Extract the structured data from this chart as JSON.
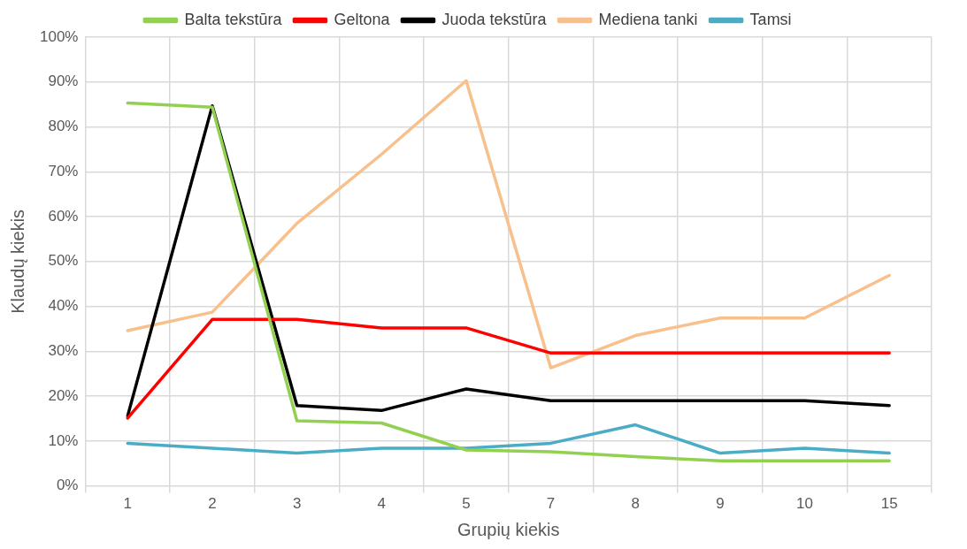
{
  "chart_data": {
    "type": "line",
    "xlabel": "Grupių kiekis",
    "ylabel": "Klaudų kiekis",
    "categories": [
      "1",
      "2",
      "3",
      "4",
      "5",
      "7",
      "8",
      "9",
      "10",
      "15"
    ],
    "series": [
      {
        "name": "Balta tekstūra",
        "color": "#92d050",
        "values": [
          85.3,
          84.4,
          14.5,
          14.0,
          8.0,
          7.6,
          6.5,
          5.6,
          5.6,
          5.6
        ]
      },
      {
        "name": "Geltona",
        "color": "#ff0000",
        "values": [
          15.1,
          37.1,
          37.1,
          35.2,
          35.2,
          29.6,
          29.6,
          29.6,
          29.6,
          29.6
        ]
      },
      {
        "name": "Juoda tekstūra",
        "color": "#000000",
        "values": [
          15.6,
          84.7,
          17.9,
          16.8,
          21.6,
          19.0,
          19.0,
          19.0,
          19.0,
          17.9
        ]
      },
      {
        "name": "Mediena tanki",
        "color": "#f8c08c",
        "values": [
          34.6,
          38.7,
          58.5,
          73.9,
          90.3,
          26.3,
          33.5,
          37.4,
          37.4,
          46.9
        ]
      },
      {
        "name": "Tamsi",
        "color": "#4bacc6",
        "values": [
          9.5,
          8.4,
          7.3,
          8.4,
          8.4,
          9.5,
          13.6,
          7.3,
          8.4,
          7.3
        ]
      }
    ],
    "ylim": [
      0,
      100
    ],
    "yticks": [
      {
        "value": 0,
        "label": "0%"
      },
      {
        "value": 10,
        "label": "10%"
      },
      {
        "value": 20,
        "label": "20%"
      },
      {
        "value": 30,
        "label": "30%"
      },
      {
        "value": 40,
        "label": "40%"
      },
      {
        "value": 50,
        "label": "50%"
      },
      {
        "value": 60,
        "label": "60%"
      },
      {
        "value": 70,
        "label": "70%"
      },
      {
        "value": 80,
        "label": "80%"
      },
      {
        "value": 90,
        "label": "90%"
      },
      {
        "value": 100,
        "label": "100%"
      }
    ],
    "grid": true,
    "legend": "top",
    "marker": "none",
    "line_style": "solid"
  }
}
